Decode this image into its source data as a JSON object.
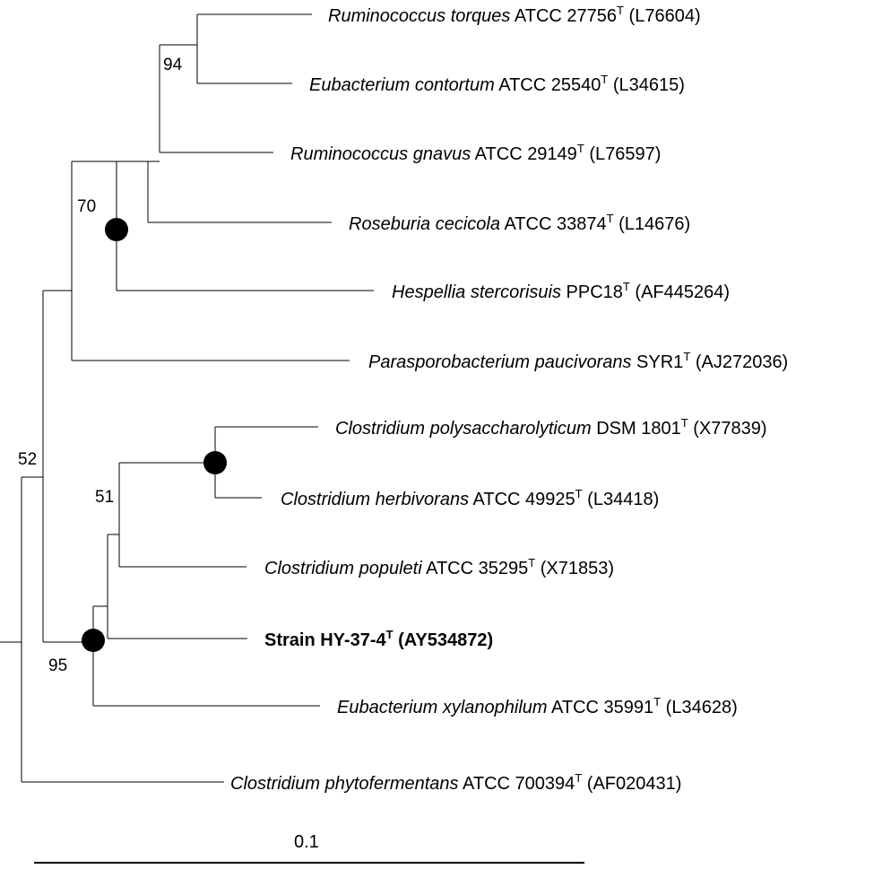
{
  "taxa": [
    {
      "genus": "Ruminococcus torques",
      "strain": " ATCC 27756",
      "sup": "T",
      "acc": " (L76604)"
    },
    {
      "genus": "Eubacterium contortum",
      "strain": " ATCC 25540",
      "sup": "T",
      "acc": " (L34615)"
    },
    {
      "genus": "Ruminococcus gnavus",
      "strain": " ATCC 29149",
      "sup": "T",
      "acc": " (L76597)"
    },
    {
      "genus": "Roseburia cecicola",
      "strain": " ATCC 33874",
      "sup": "T",
      "acc": " (L14676)"
    },
    {
      "genus": "Hespellia stercorisuis",
      "strain": " PPC18",
      "sup": "T",
      "acc": " (AF445264)"
    },
    {
      "genus": "Parasporobacterium paucivorans",
      "strain": " SYR1",
      "sup": "T",
      "acc": " (AJ272036)"
    },
    {
      "genus": "Clostridium polysaccharolyticum",
      "strain": " DSM 1801",
      "sup": "T",
      "acc": " (X77839)"
    },
    {
      "genus": "Clostridium herbivorans",
      "strain": " ATCC 49925",
      "sup": "T",
      "acc": " (L34418)"
    },
    {
      "genus": "Clostridium populeti",
      "strain": " ATCC 35295",
      "sup": "T",
      "acc": " (X71853)"
    },
    {
      "genus": "",
      "strain": "Strain HY-37-4",
      "sup": "T",
      "acc": " (AY534872)"
    },
    {
      "genus": "Eubacterium xylanophilum",
      "strain": " ATCC 35991",
      "sup": "T",
      "acc": " (L34628)"
    },
    {
      "genus": "Clostridium phytofermentans",
      "strain": " ATCC 700394",
      "sup": "T",
      "acc": " (AF020431)"
    }
  ],
  "bootstrap": {
    "b94": "94",
    "b70": "70",
    "b52": "52",
    "b51": "51",
    "b95": "95"
  },
  "scale_bar": {
    "label": "0.1"
  }
}
